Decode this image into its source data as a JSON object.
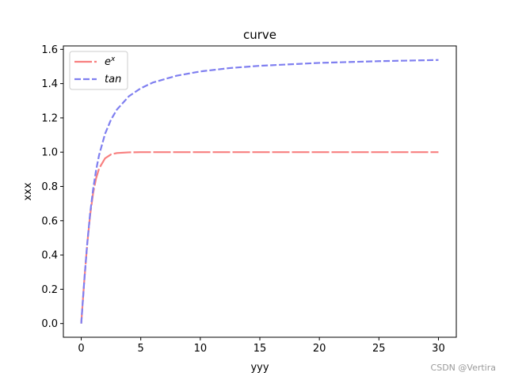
{
  "chart_data": {
    "type": "line",
    "title": "curve",
    "xlabel": "yyy",
    "ylabel": "xxx",
    "xlim": [
      -1.5,
      31.5
    ],
    "ylim": [
      -0.08,
      1.62
    ],
    "xticks": [
      0,
      5,
      10,
      15,
      20,
      25,
      30
    ],
    "yticks": [
      0.0,
      0.2,
      0.4,
      0.6,
      0.8,
      1.0,
      1.2,
      1.4,
      1.6
    ],
    "xtick_labels": [
      "0",
      "5",
      "10",
      "15",
      "20",
      "25",
      "30"
    ],
    "ytick_labels": [
      "0.0",
      "0.2",
      "0.4",
      "0.6",
      "0.8",
      "1.0",
      "1.2",
      "1.4",
      "1.6"
    ],
    "legend_position": "top-left",
    "grid": false,
    "series": [
      {
        "name": "e^x",
        "color": "#f87f7f",
        "dash": "dash-long",
        "x": [
          0,
          0.25,
          0.5,
          0.75,
          1.0,
          1.25,
          1.5,
          2.0,
          2.5,
          3.0,
          4.0,
          5.0,
          7.5,
          10,
          15,
          20,
          25,
          30
        ],
        "y": [
          0.0,
          0.245,
          0.462,
          0.635,
          0.762,
          0.848,
          0.905,
          0.964,
          0.987,
          0.995,
          0.999,
          1.0,
          1.0,
          1.0,
          1.0,
          1.0,
          1.0,
          1.0
        ]
      },
      {
        "name": "tan",
        "color": "#7f7ff0",
        "dash": "dash-short",
        "x": [
          0,
          0.25,
          0.5,
          0.75,
          1.0,
          1.25,
          1.5,
          2.0,
          2.5,
          3.0,
          4.0,
          5.0,
          6.0,
          8.0,
          10,
          12.5,
          15,
          20,
          25,
          30
        ],
        "y": [
          0.0,
          0.245,
          0.464,
          0.644,
          0.785,
          0.896,
          0.983,
          1.107,
          1.19,
          1.249,
          1.326,
          1.373,
          1.406,
          1.446,
          1.471,
          1.491,
          1.504,
          1.521,
          1.531,
          1.538
        ]
      }
    ]
  },
  "legend": {
    "entries": [
      {
        "base": "e",
        "sup": "x"
      },
      {
        "base": "tan",
        "sup": ""
      }
    ]
  },
  "watermark": "CSDN @Vertira"
}
